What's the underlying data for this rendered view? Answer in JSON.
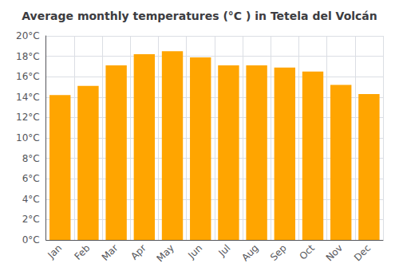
{
  "chart_data": {
    "type": "bar",
    "title": "Average monthly temperatures (°C ) in Tetela del Volcán",
    "categories": [
      "Jan",
      "Feb",
      "Mar",
      "Apr",
      "May",
      "Jun",
      "Jul",
      "Aug",
      "Sep",
      "Oct",
      "Nov",
      "Dec"
    ],
    "values": [
      14.2,
      15.1,
      17.1,
      18.2,
      18.5,
      17.9,
      17.1,
      17.1,
      16.9,
      16.5,
      15.2,
      14.3
    ],
    "color": "#FFA500",
    "ylim": [
      0,
      20
    ],
    "yticks": [
      {
        "value": 0,
        "label": "0°C"
      },
      {
        "value": 2,
        "label": "2°C"
      },
      {
        "value": 4,
        "label": "4°C"
      },
      {
        "value": 6,
        "label": "6°C"
      },
      {
        "value": 8,
        "label": "8°C"
      },
      {
        "value": 10,
        "label": "10°C"
      },
      {
        "value": 12,
        "label": "12°C"
      },
      {
        "value": 14,
        "label": "14°C"
      },
      {
        "value": 16,
        "label": "16°C"
      },
      {
        "value": 18,
        "label": "18°C"
      },
      {
        "value": 20,
        "label": "20°C"
      }
    ],
    "grid": true
  }
}
